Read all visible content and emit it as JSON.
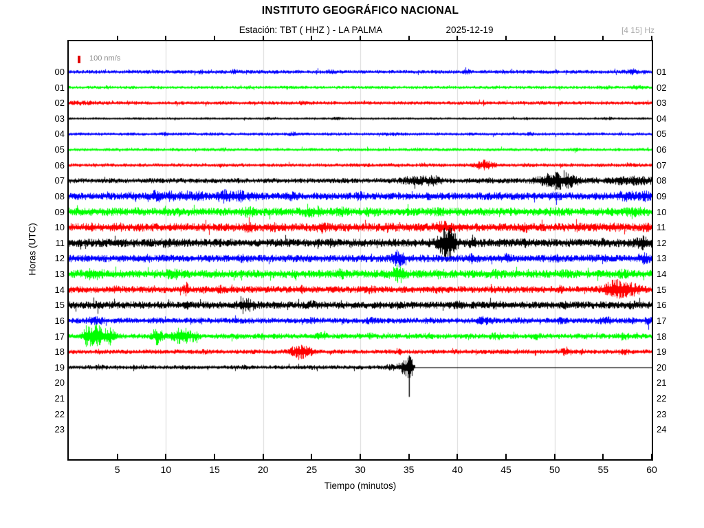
{
  "header": {
    "title": "INSTITUTO GEOGRÁFICO NACIONAL",
    "station_label": "Estación:  TBT ( HHZ ) - LA PALMA",
    "date": "2025-12-19",
    "filter_band": "[4 15] Hz"
  },
  "legend": {
    "scale_label": "100 nm/s",
    "marker_color": "#e00000"
  },
  "axes": {
    "x_label": "Tiempo (minutos)",
    "y_label": "Horas (UTC)",
    "x_range": [
      0,
      60
    ],
    "x_ticks": [
      5,
      10,
      15,
      20,
      25,
      30,
      35,
      40,
      45,
      50,
      55,
      60
    ],
    "x_gridlines": [
      10,
      20,
      30,
      40,
      50
    ],
    "gridline_color": "#d9d9d9",
    "left_hour_labels": [
      "00",
      "01",
      "02",
      "03",
      "04",
      "05",
      "06",
      "07",
      "08",
      "09",
      "10",
      "11",
      "12",
      "13",
      "14",
      "15",
      "16",
      "17",
      "18",
      "19",
      "20",
      "21",
      "22",
      "23"
    ],
    "right_hour_labels": [
      "01",
      "02",
      "03",
      "04",
      "05",
      "06",
      "07",
      "08",
      "09",
      "10",
      "11",
      "12",
      "13",
      "14",
      "15",
      "16",
      "17",
      "18",
      "19",
      "20",
      "21",
      "22",
      "23",
      "24"
    ]
  },
  "chart_data": {
    "type": "seismogram",
    "station": "TBT",
    "channel": "HHZ",
    "location": "LA PALMA",
    "date": "2025-12-19",
    "filter_band_hz": [
      4,
      15
    ],
    "x_unit": "minutes",
    "x_range": [
      0,
      60
    ],
    "amplitude_reference_nmps": 100,
    "palette_cycle": [
      "#0000ff",
      "#00ff00",
      "#ff0000",
      "#000000"
    ],
    "rows": [
      {
        "left": "00",
        "right": "01",
        "color": "#0000ff",
        "base": 26,
        "end": 60,
        "flat": false,
        "spikes": [],
        "events": [
          [
            13.5,
            0.3,
            18
          ],
          [
            17,
            0.3,
            16
          ],
          [
            27,
            0.4,
            14
          ],
          [
            41,
            0.3,
            18
          ],
          [
            44.8,
            0.2,
            20
          ],
          [
            50,
            0.3,
            14
          ],
          [
            58,
            0.6,
            22
          ]
        ]
      },
      {
        "left": "01",
        "right": "02",
        "color": "#00ff00",
        "base": 22,
        "end": 60,
        "flat": false,
        "spikes": [],
        "events": [
          [
            4,
            0.3,
            10
          ],
          [
            18.5,
            0.3,
            12
          ],
          [
            44,
            0.4,
            10
          ],
          [
            55,
            0.6,
            14
          ],
          [
            58.5,
            0.6,
            16
          ]
        ]
      },
      {
        "left": "02",
        "right": "03",
        "color": "#ff0000",
        "base": 26,
        "end": 60,
        "flat": false,
        "spikes": [],
        "events": [
          [
            1.5,
            1.2,
            10
          ],
          [
            6,
            0.4,
            10
          ],
          [
            24,
            0.3,
            12
          ],
          [
            30.5,
            0.3,
            10
          ],
          [
            55,
            0.3,
            10
          ]
        ]
      },
      {
        "left": "03",
        "right": "04",
        "color": "#000000",
        "base": 16,
        "end": 60,
        "flat": false,
        "spikes": [],
        "events": [
          [
            20.5,
            0.4,
            10
          ],
          [
            27.5,
            0.4,
            12
          ],
          [
            47,
            0.3,
            8
          ],
          [
            55.5,
            0.4,
            12
          ]
        ]
      },
      {
        "left": "04",
        "right": "05",
        "color": "#0000ff",
        "base": 22,
        "end": 60,
        "flat": false,
        "spikes": [],
        "events": [
          [
            10,
            0.5,
            10
          ],
          [
            23,
            0.4,
            14
          ],
          [
            33.5,
            0.4,
            10
          ],
          [
            47.5,
            0.3,
            10
          ]
        ]
      },
      {
        "left": "05",
        "right": "06",
        "color": "#00ff00",
        "base": 22,
        "end": 60,
        "flat": false,
        "spikes": [],
        "events": [
          [
            16,
            0.4,
            8
          ],
          [
            36,
            0.4,
            8
          ],
          [
            52,
            0.4,
            12
          ]
        ]
      },
      {
        "left": "06",
        "right": "07",
        "color": "#ff0000",
        "base": 26,
        "end": 60,
        "flat": false,
        "spikes": [],
        "events": [
          [
            36.5,
            0.3,
            14
          ],
          [
            42.8,
            0.9,
            60
          ],
          [
            47,
            0.3,
            12
          ]
        ]
      },
      {
        "left": "07",
        "right": "08",
        "color": "#000000",
        "base": 36,
        "end": 60,
        "flat": false,
        "spikes": [],
        "events": [
          [
            35.5,
            1.3,
            40
          ],
          [
            37.5,
            0.9,
            45
          ],
          [
            43,
            0.5,
            15
          ],
          [
            49.8,
            1.6,
            85
          ],
          [
            51.5,
            0.9,
            70
          ],
          [
            54,
            0.5,
            20
          ],
          [
            57,
            1.4,
            30
          ],
          [
            59,
            1.0,
            40
          ]
        ]
      },
      {
        "left": "08",
        "right": "09",
        "color": "#0000ff",
        "base": 52,
        "end": 60,
        "flat": false,
        "spikes": [],
        "events": [
          [
            6.5,
            0.5,
            20
          ],
          [
            9,
            0.7,
            40
          ],
          [
            10.5,
            0.5,
            30
          ],
          [
            12,
            0.6,
            35
          ],
          [
            13.5,
            0.5,
            30
          ],
          [
            16,
            0.8,
            50
          ],
          [
            17.5,
            0.7,
            45
          ],
          [
            19,
            0.5,
            30
          ],
          [
            23,
            0.4,
            20
          ],
          [
            30,
            0.5,
            20
          ],
          [
            37,
            0.5,
            18
          ],
          [
            44,
            0.6,
            20
          ],
          [
            50,
            0.5,
            15
          ],
          [
            57.5,
            1.1,
            35
          ],
          [
            59.3,
            0.5,
            30
          ]
        ]
      },
      {
        "left": "09",
        "right": "10",
        "color": "#00ff00",
        "base": 58,
        "end": 60,
        "flat": false,
        "spikes": [],
        "events": [
          [
            7,
            0.5,
            15
          ],
          [
            18.5,
            0.6,
            30
          ],
          [
            25,
            0.8,
            35
          ],
          [
            28,
            0.4,
            20
          ],
          [
            31,
            0.5,
            22
          ],
          [
            38,
            0.4,
            18
          ],
          [
            50,
            0.5,
            15
          ],
          [
            58,
            0.8,
            25
          ]
        ]
      },
      {
        "left": "10",
        "right": "11",
        "color": "#ff0000",
        "base": 58,
        "end": 60,
        "flat": false,
        "spikes": [],
        "events": [
          [
            5,
            0.5,
            15
          ],
          [
            18.5,
            0.5,
            25
          ],
          [
            21,
            0.4,
            20
          ],
          [
            26,
            0.6,
            30
          ],
          [
            33,
            0.4,
            18
          ],
          [
            38.7,
            1.0,
            38
          ],
          [
            47,
            0.5,
            22
          ],
          [
            52.5,
            0.4,
            18
          ],
          [
            56,
            0.6,
            25
          ],
          [
            59.5,
            0.4,
            30
          ]
        ]
      },
      {
        "left": "11",
        "right": "12",
        "color": "#000000",
        "base": 58,
        "end": 60,
        "flat": false,
        "spikes": [],
        "events": [
          [
            10,
            0.5,
            15
          ],
          [
            27,
            0.5,
            20
          ],
          [
            38.8,
            0.9,
            160
          ],
          [
            39.3,
            0.4,
            90
          ],
          [
            41.5,
            0.3,
            60
          ],
          [
            47,
            0.4,
            15
          ],
          [
            55,
            0.4,
            15
          ],
          [
            59,
            0.7,
            60
          ]
        ]
      },
      {
        "left": "12",
        "right": "13",
        "color": "#0000ff",
        "base": 52,
        "end": 60,
        "flat": false,
        "spikes": [],
        "events": [
          [
            8,
            0.5,
            15
          ],
          [
            18,
            0.5,
            18
          ],
          [
            33.9,
            0.6,
            75
          ],
          [
            41.5,
            0.4,
            35
          ],
          [
            45,
            0.4,
            25
          ],
          [
            50,
            0.4,
            18
          ],
          [
            55,
            0.4,
            18
          ],
          [
            59.2,
            0.5,
            35
          ]
        ]
      },
      {
        "left": "13",
        "right": "14",
        "color": "#00ff00",
        "base": 58,
        "end": 60,
        "flat": false,
        "spikes": [],
        "events": [
          [
            2.5,
            0.9,
            35
          ],
          [
            10.8,
            0.7,
            30
          ],
          [
            15,
            0.4,
            18
          ],
          [
            28,
            0.5,
            25
          ],
          [
            33.9,
            0.7,
            80
          ],
          [
            38,
            0.4,
            18
          ],
          [
            44,
            0.5,
            20
          ],
          [
            51,
            0.4,
            15
          ],
          [
            57,
            0.4,
            18
          ]
        ]
      },
      {
        "left": "14",
        "right": "15",
        "color": "#ff0000",
        "base": 48,
        "end": 60,
        "flat": false,
        "spikes": [],
        "events": [
          [
            5,
            0.4,
            15
          ],
          [
            12.1,
            0.25,
            60
          ],
          [
            15.5,
            0.4,
            20
          ],
          [
            24,
            0.4,
            28
          ],
          [
            31,
            0.4,
            20
          ],
          [
            38,
            0.4,
            15
          ],
          [
            44,
            0.4,
            15
          ],
          [
            50.5,
            0.3,
            20
          ],
          [
            55.6,
            0.7,
            60
          ],
          [
            56.8,
            1.0,
            100
          ],
          [
            58.3,
            0.7,
            40
          ]
        ]
      },
      {
        "left": "15",
        "right": "16",
        "color": "#000000",
        "base": 52,
        "end": 60,
        "flat": false,
        "spikes": [],
        "events": [
          [
            3,
            0.5,
            12
          ],
          [
            12,
            0.4,
            15
          ],
          [
            18.2,
            0.8,
            60
          ],
          [
            25,
            0.5,
            18
          ],
          [
            34,
            0.4,
            15
          ],
          [
            40,
            0.4,
            12
          ],
          [
            44,
            0.5,
            15
          ],
          [
            51,
            0.4,
            12
          ],
          [
            58,
            0.5,
            15
          ]
        ]
      },
      {
        "left": "16",
        "right": "17",
        "color": "#0000ff",
        "base": 40,
        "end": 60,
        "flat": false,
        "spikes": [],
        "events": [
          [
            2.8,
            0.9,
            28
          ],
          [
            9,
            0.4,
            15
          ],
          [
            18,
            0.5,
            14
          ],
          [
            25,
            0.4,
            12
          ],
          [
            31,
            0.5,
            14
          ],
          [
            37,
            0.4,
            12
          ],
          [
            42.7,
            0.9,
            25
          ],
          [
            46,
            0.4,
            15
          ],
          [
            50.7,
            0.5,
            20
          ],
          [
            55.2,
            0.7,
            25
          ],
          [
            58,
            0.4,
            15
          ],
          [
            59.6,
            0.3,
            30
          ]
        ]
      },
      {
        "left": "17",
        "right": "18",
        "color": "#00ff00",
        "base": 38,
        "end": 60,
        "flat": false,
        "spikes": [],
        "events": [
          [
            1.8,
            0.4,
            90
          ],
          [
            2.9,
            0.9,
            140
          ],
          [
            4.3,
            0.5,
            80
          ],
          [
            9.1,
            0.5,
            95
          ],
          [
            11.6,
            0.9,
            100
          ],
          [
            13,
            0.4,
            40
          ],
          [
            20,
            0.4,
            15
          ],
          [
            26,
            0.5,
            25
          ],
          [
            31,
            0.4,
            15
          ],
          [
            37,
            0.4,
            15
          ],
          [
            44,
            0.6,
            25
          ],
          [
            48,
            0.5,
            20
          ],
          [
            53,
            0.4,
            15
          ],
          [
            57,
            0.6,
            25
          ]
        ]
      },
      {
        "left": "18",
        "right": "19",
        "color": "#ff0000",
        "base": 32,
        "end": 60,
        "flat": false,
        "spikes": [],
        "events": [
          [
            3,
            0.4,
            10
          ],
          [
            8,
            0.3,
            10
          ],
          [
            14,
            0.4,
            10
          ],
          [
            23.8,
            0.9,
            85
          ],
          [
            25,
            0.3,
            30
          ],
          [
            34,
            0.3,
            18
          ],
          [
            40,
            0.3,
            12
          ],
          [
            46,
            0.3,
            10
          ],
          [
            51.2,
            0.5,
            40
          ],
          [
            52.7,
            0.3,
            25
          ],
          [
            57.2,
            0.4,
            20
          ]
        ]
      },
      {
        "left": "19",
        "right": "20",
        "color": "#000000",
        "base": 28,
        "end": 35.6,
        "flat": true,
        "spikes": [
          [
            35.05,
            170,
            430
          ]
        ],
        "events": [
          [
            3,
            0.7,
            16
          ],
          [
            6.7,
            0.12,
            35
          ],
          [
            12,
            0.4,
            8
          ],
          [
            18,
            0.5,
            10
          ],
          [
            25,
            0.4,
            8
          ],
          [
            30,
            0.4,
            8
          ],
          [
            33.2,
            0.6,
            25
          ],
          [
            34.6,
            0.6,
            90
          ],
          [
            35.1,
            0.25,
            140
          ]
        ]
      },
      {
        "left": "20",
        "right": "21",
        "color": null,
        "base": null,
        "end": 0,
        "flat": false,
        "spikes": [],
        "events": []
      },
      {
        "left": "21",
        "right": "22",
        "color": null,
        "base": null,
        "end": 0,
        "flat": false,
        "spikes": [],
        "events": []
      },
      {
        "left": "22",
        "right": "23",
        "color": null,
        "base": null,
        "end": 0,
        "flat": false,
        "spikes": [],
        "events": []
      },
      {
        "left": "23",
        "right": "24",
        "color": null,
        "base": null,
        "end": 0,
        "flat": false,
        "spikes": [],
        "events": []
      }
    ]
  }
}
